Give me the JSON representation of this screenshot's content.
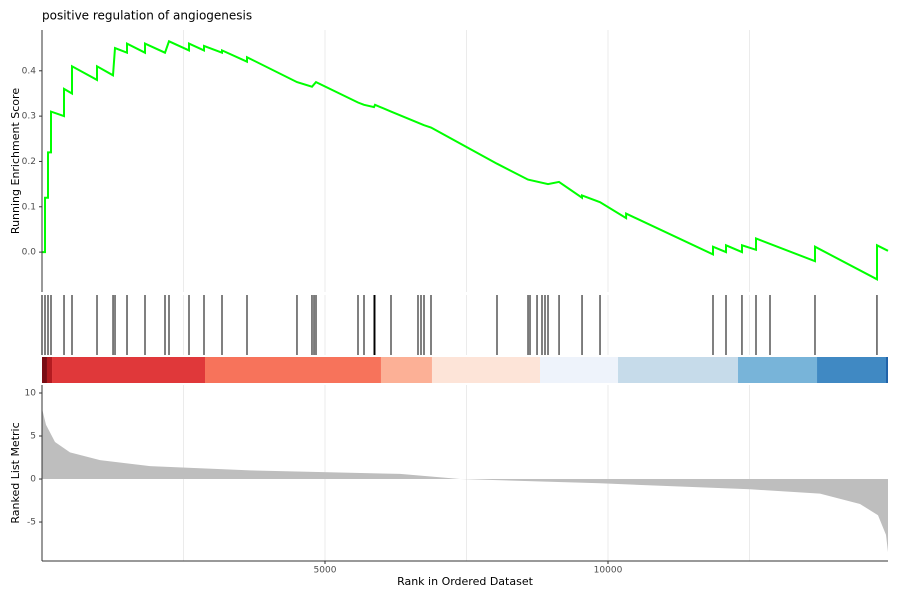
{
  "chart_data": [
    {
      "type": "line",
      "title": "positive regulation of angiogenesis",
      "y_label": "Running Enrichment Score",
      "xlim": [
        0,
        14947
      ],
      "ylim": [
        -0.088,
        0.49
      ],
      "yticks": [
        {
          "value": 0,
          "label": "0.0"
        },
        0.1,
        0.2,
        0.3,
        0.4
      ],
      "xgrid": [
        2500,
        5000,
        7500,
        10000,
        12500
      ],
      "series": [
        {
          "name": "Running Enrichment Score",
          "color": "#00ff00",
          "x": [
            0,
            53,
            53,
            106,
            106,
            159,
            159,
            389,
            389,
            530,
            530,
            972,
            972,
            1255,
            1290,
            1502,
            1502,
            1820,
            1820,
            2173,
            2244,
            2597,
            2597,
            2862,
            2862,
            3180,
            3180,
            3622,
            3622,
            4505,
            4770,
            4841,
            5583,
            5689,
            5866,
            5883,
            6166,
            6749,
            6873,
            8039,
            8587,
            8940,
            9135,
            9541,
            9541,
            9859,
            10320,
            10320,
            11855,
            11855,
            12085,
            12085,
            12367,
            12367,
            12615,
            12615,
            13657,
            13657,
            14752,
            14752,
            14947
          ],
          "values": [
            0,
            0,
            0.12,
            0.12,
            0.22,
            0.22,
            0.31,
            0.3,
            0.36,
            0.35,
            0.41,
            0.38,
            0.41,
            0.39,
            0.45,
            0.44,
            0.46,
            0.44,
            0.46,
            0.44,
            0.465,
            0.445,
            0.46,
            0.445,
            0.455,
            0.44,
            0.445,
            0.42,
            0.43,
            0.375,
            0.365,
            0.375,
            0.33,
            0.325,
            0.32,
            0.325,
            0.31,
            0.28,
            0.275,
            0.195,
            0.16,
            0.15,
            0.155,
            0.12,
            0.125,
            0.11,
            0.075,
            0.085,
            -0.005,
            0.012,
            0,
            0.015,
            0,
            0.015,
            0.005,
            0.03,
            -0.02,
            0.012,
            -0.06,
            0.015,
            0.003
          ]
        }
      ]
    },
    {
      "type": "rug",
      "xlim": [
        0,
        14947
      ],
      "xgrid": [
        2500,
        5000,
        7500,
        10000,
        12500
      ],
      "color": "#000000",
      "hits": [
        0,
        53,
        106,
        159,
        389,
        530,
        972,
        1255,
        1290,
        1502,
        1820,
        2173,
        2244,
        2597,
        2862,
        3180,
        3622,
        4505,
        4770,
        4806,
        4841,
        5583,
        5689,
        5866,
        5883,
        6166,
        6643,
        6696,
        6749,
        6873,
        8039,
        8587,
        8622,
        8746,
        8834,
        8887,
        8940,
        9135,
        9541,
        9859,
        11855,
        12085,
        12367,
        12615,
        12862,
        13657,
        14752
      ],
      "band_bins": [
        0,
        88,
        177,
        2880,
        5989,
        6890,
        8799,
        10177,
        12297,
        13693,
        14912,
        14947
      ],
      "band_colors": [
        "#7a0c14",
        "#b31b20",
        "#e0383a",
        "#f7735b",
        "#fcb096",
        "#fde4d8",
        "#eef3fb",
        "#c6dbea",
        "#78b4d9",
        "#4089c3",
        "#1f62a8"
      ]
    },
    {
      "type": "area",
      "y_label": "Ranked List Metric",
      "x_label": "Rank in Ordered Dataset",
      "color": "#bebebe",
      "xlim": [
        0,
        14947
      ],
      "ylim": [
        -9.53,
        10.93
      ],
      "yticks": [
        -5,
        0,
        5,
        10
      ],
      "xticks": [
        5000,
        10000
      ],
      "xgrid": [
        2500,
        5000,
        7500,
        10000,
        12500
      ],
      "x": [
        0,
        71,
        230,
        495,
        1025,
        1908,
        3675,
        6325,
        7386,
        9859,
        12509,
        13746,
        14452,
        14770,
        14912,
        14947
      ],
      "values": [
        8.2,
        6.3,
        4.3,
        3.1,
        2.2,
        1.5,
        1.0,
        0.6,
        0,
        -0.5,
        -1.2,
        -1.7,
        -2.9,
        -4.2,
        -6.5,
        -8.5
      ]
    }
  ]
}
